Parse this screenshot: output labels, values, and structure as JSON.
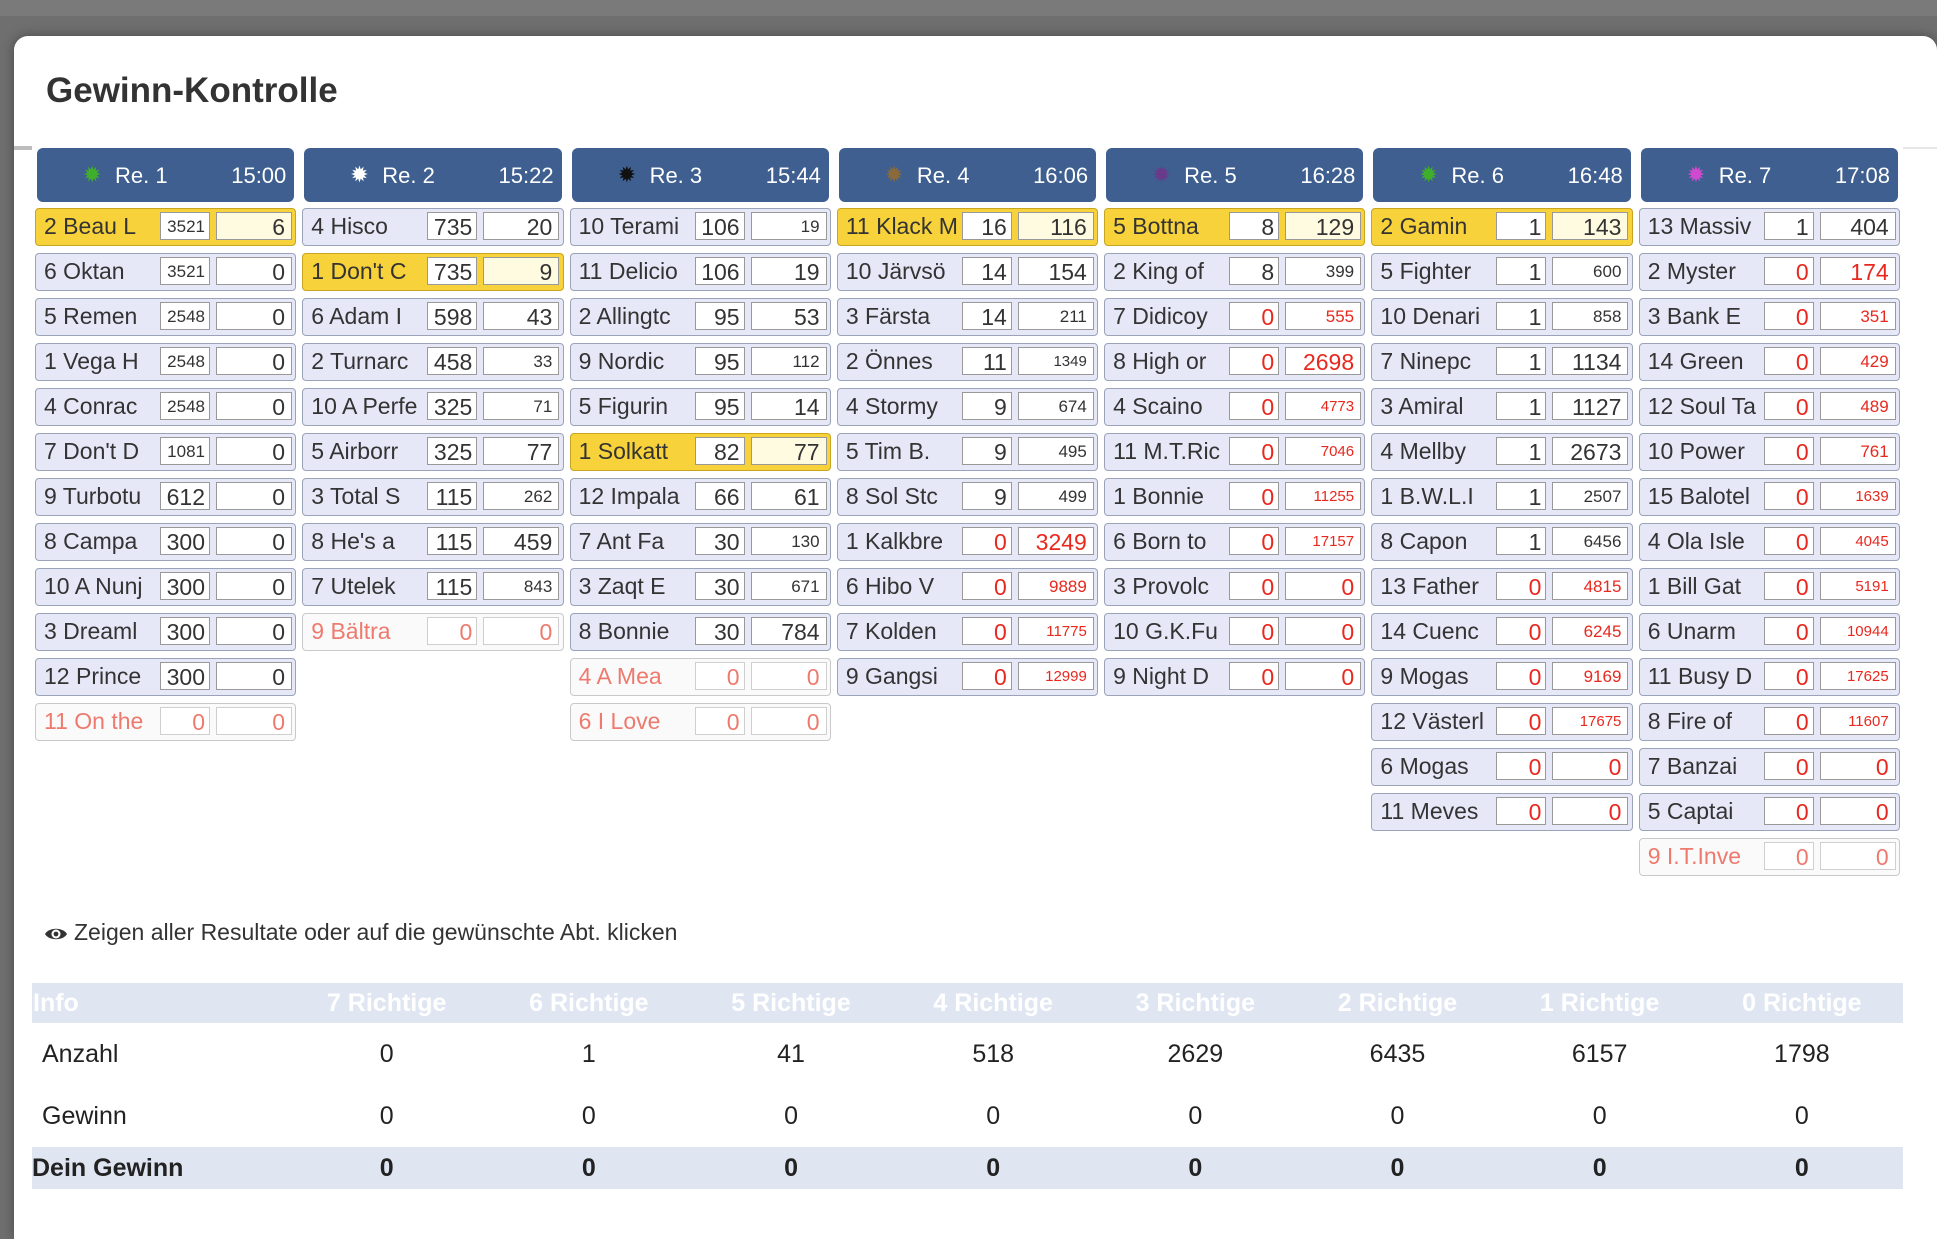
{
  "title": "Gewinn-Kontrolle",
  "hint": "Zeigen aller Resultate oder auf die gewünschte Abt. klicken",
  "races": [
    {
      "name": "Re. 1",
      "time": "15:00",
      "dot": "#3fae2a",
      "entries": [
        {
          "label": "2 Beau L",
          "a": "3521",
          "b": "6",
          "status": "win",
          "asz": "sm"
        },
        {
          "label": "6 Oktan",
          "a": "3521",
          "b": "0",
          "status": "",
          "asz": "sm"
        },
        {
          "label": "5 Remen",
          "a": "2548",
          "b": "0",
          "status": "",
          "asz": "sm"
        },
        {
          "label": "1 Vega H",
          "a": "2548",
          "b": "0",
          "status": "",
          "asz": "sm"
        },
        {
          "label": "4 Conrac",
          "a": "2548",
          "b": "0",
          "status": "",
          "asz": "sm"
        },
        {
          "label": "7 Don't D",
          "a": "1081",
          "b": "0",
          "status": "",
          "asz": "sm"
        },
        {
          "label": "9 Turbotu",
          "a": "612",
          "b": "0",
          "status": ""
        },
        {
          "label": "8 Campa",
          "a": "300",
          "b": "0",
          "status": ""
        },
        {
          "label": "10 A Nunj",
          "a": "300",
          "b": "0",
          "status": ""
        },
        {
          "label": "3 Dreaml",
          "a": "300",
          "b": "0",
          "status": ""
        },
        {
          "label": "12 Prince",
          "a": "300",
          "b": "0",
          "status": ""
        },
        {
          "label": "11 On the",
          "a": "0",
          "b": "0",
          "status": "scratch"
        }
      ]
    },
    {
      "name": "Re. 2",
      "time": "15:22",
      "dot": "#ffffff",
      "entries": [
        {
          "label": "4 Hisco",
          "a": "735",
          "b": "20",
          "status": ""
        },
        {
          "label": "1 Don't C",
          "a": "735",
          "b": "9",
          "status": "win"
        },
        {
          "label": "6 Adam I",
          "a": "598",
          "b": "43",
          "status": ""
        },
        {
          "label": "2 Turnarc",
          "a": "458",
          "b": "33",
          "status": "",
          "bsz": "sm"
        },
        {
          "label": "10 A Perfe",
          "a": "325",
          "b": "71",
          "status": "",
          "bsz": "sm"
        },
        {
          "label": "5 Airborr",
          "a": "325",
          "b": "77",
          "status": ""
        },
        {
          "label": "3 Total S",
          "a": "115",
          "b": "262",
          "status": "",
          "bsz": "sm"
        },
        {
          "label": "8 He's a",
          "a": "115",
          "b": "459",
          "status": ""
        },
        {
          "label": "7 Utelek",
          "a": "115",
          "b": "843",
          "status": "",
          "bsz": "sm"
        },
        {
          "label": "9 Bältra",
          "a": "0",
          "b": "0",
          "status": "scratch"
        }
      ]
    },
    {
      "name": "Re. 3",
      "time": "15:44",
      "dot": "#111111",
      "entries": [
        {
          "label": "10 Terami",
          "a": "106",
          "b": "19",
          "status": "",
          "bsz": "sm"
        },
        {
          "label": "11 Delicio",
          "a": "106",
          "b": "19",
          "status": ""
        },
        {
          "label": "2 Allingtc",
          "a": "95",
          "b": "53",
          "status": ""
        },
        {
          "label": "9 Nordic",
          "a": "95",
          "b": "112",
          "status": "",
          "bsz": "sm"
        },
        {
          "label": "5 Figurin",
          "a": "95",
          "b": "14",
          "status": ""
        },
        {
          "label": "1 Solkatt",
          "a": "82",
          "b": "77",
          "status": "win"
        },
        {
          "label": "12 Impala",
          "a": "66",
          "b": "61",
          "status": ""
        },
        {
          "label": "7 Ant Fa",
          "a": "30",
          "b": "130",
          "status": "",
          "bsz": "sm"
        },
        {
          "label": "3 Zaqt E",
          "a": "30",
          "b": "671",
          "status": "",
          "bsz": "sm"
        },
        {
          "label": "8 Bonnie",
          "a": "30",
          "b": "784",
          "status": ""
        },
        {
          "label": "4 A Mea",
          "a": "0",
          "b": "0",
          "status": "scratch"
        },
        {
          "label": "6 I Love",
          "a": "0",
          "b": "0",
          "status": "scratch"
        }
      ]
    },
    {
      "name": "Re. 4",
      "time": "16:06",
      "dot": "#8a6a3a",
      "entries": [
        {
          "label": "11 Klack M",
          "a": "16",
          "b": "116",
          "status": "win"
        },
        {
          "label": "10 Järvsö",
          "a": "14",
          "b": "154",
          "status": ""
        },
        {
          "label": "3 Färsta",
          "a": "14",
          "b": "211",
          "status": "",
          "bsz": "sm"
        },
        {
          "label": "2 Önnes",
          "a": "11",
          "b": "1349",
          "status": "",
          "bsz": "xs"
        },
        {
          "label": "4 Stormy",
          "a": "9",
          "b": "674",
          "status": "",
          "bsz": "sm"
        },
        {
          "label": "5 Tim B.",
          "a": "9",
          "b": "495",
          "status": "",
          "bsz": "sm"
        },
        {
          "label": "8 Sol Stc",
          "a": "9",
          "b": "499",
          "status": "",
          "bsz": "sm"
        },
        {
          "label": "1 Kalkbre",
          "a": "0",
          "b": "3249",
          "status": "red"
        },
        {
          "label": "6 Hibo V",
          "a": "0",
          "b": "9889",
          "status": "red",
          "bsz": "sm"
        },
        {
          "label": "7 Kolden",
          "a": "0",
          "b": "11775",
          "status": "red",
          "bsz": "xs"
        },
        {
          "label": "9 Gangsi",
          "a": "0",
          "b": "12999",
          "status": "red",
          "bsz": "xs"
        }
      ]
    },
    {
      "name": "Re. 5",
      "time": "16:28",
      "dot": "#6a3a8a",
      "entries": [
        {
          "label": "5 Bottna",
          "a": "8",
          "b": "129",
          "status": "win"
        },
        {
          "label": "2 King of",
          "a": "8",
          "b": "399",
          "status": "",
          "bsz": "sm"
        },
        {
          "label": "7 Didicoy",
          "a": "0",
          "b": "555",
          "status": "red",
          "bsz": "sm"
        },
        {
          "label": "8 High or",
          "a": "0",
          "b": "2698",
          "status": "red"
        },
        {
          "label": "4 Scaino",
          "a": "0",
          "b": "4773",
          "status": "red",
          "bsz": "xs"
        },
        {
          "label": "11 M.T.Ric",
          "a": "0",
          "b": "7046",
          "status": "red",
          "bsz": "xs"
        },
        {
          "label": "1 Bonnie",
          "a": "0",
          "b": "11255",
          "status": "red",
          "bsz": "xs"
        },
        {
          "label": "6 Born to",
          "a": "0",
          "b": "17157",
          "status": "red",
          "bsz": "xs"
        },
        {
          "label": "3 Provolc",
          "a": "0",
          "b": "0",
          "status": "red"
        },
        {
          "label": "10 G.K.Fu",
          "a": "0",
          "b": "0",
          "status": "red"
        },
        {
          "label": "9 Night D",
          "a": "0",
          "b": "0",
          "status": "red"
        }
      ]
    },
    {
      "name": "Re. 6",
      "time": "16:48",
      "dot": "#3fae2a",
      "entries": [
        {
          "label": "2 Gamin",
          "a": "1",
          "b": "143",
          "status": "win"
        },
        {
          "label": "5 Fighter",
          "a": "1",
          "b": "600",
          "status": "",
          "bsz": "sm"
        },
        {
          "label": "10 Denari",
          "a": "1",
          "b": "858",
          "status": "",
          "bsz": "sm"
        },
        {
          "label": "7 Ninepc",
          "a": "1",
          "b": "1134",
          "status": ""
        },
        {
          "label": "3 Amiral",
          "a": "1",
          "b": "1127",
          "status": ""
        },
        {
          "label": "4 Mellby",
          "a": "1",
          "b": "2673",
          "status": ""
        },
        {
          "label": "1 B.W.L.I",
          "a": "1",
          "b": "2507",
          "status": "",
          "bsz": "sm"
        },
        {
          "label": "8 Capon",
          "a": "1",
          "b": "6456",
          "status": "",
          "bsz": "sm"
        },
        {
          "label": "13 Father",
          "a": "0",
          "b": "4815",
          "status": "red",
          "bsz": "sm"
        },
        {
          "label": "14 Cuenc",
          "a": "0",
          "b": "6245",
          "status": "red",
          "bsz": "sm"
        },
        {
          "label": "9 Mogas",
          "a": "0",
          "b": "9169",
          "status": "red",
          "bsz": "sm"
        },
        {
          "label": "12 Västerl",
          "a": "0",
          "b": "17675",
          "status": "red",
          "bsz": "xs"
        },
        {
          "label": "6 Mogas",
          "a": "0",
          "b": "0",
          "status": "red"
        },
        {
          "label": "11 Meves",
          "a": "0",
          "b": "0",
          "status": "red"
        }
      ]
    },
    {
      "name": "Re. 7",
      "time": "17:08",
      "dot": "#d04ad0",
      "entries": [
        {
          "label": "13 Massiv",
          "a": "1",
          "b": "404",
          "status": ""
        },
        {
          "label": "2 Myster",
          "a": "0",
          "b": "174",
          "status": "red"
        },
        {
          "label": "3 Bank E",
          "a": "0",
          "b": "351",
          "status": "red",
          "bsz": "sm"
        },
        {
          "label": "14 Green",
          "a": "0",
          "b": "429",
          "status": "red",
          "bsz": "sm"
        },
        {
          "label": "12 Soul Ta",
          "a": "0",
          "b": "489",
          "status": "red",
          "bsz": "sm"
        },
        {
          "label": "10 Power",
          "a": "0",
          "b": "761",
          "status": "red",
          "bsz": "sm"
        },
        {
          "label": "15 Balotel",
          "a": "0",
          "b": "1639",
          "status": "red",
          "bsz": "xs"
        },
        {
          "label": "4 Ola Isle",
          "a": "0",
          "b": "4045",
          "status": "red",
          "bsz": "xs"
        },
        {
          "label": "1 Bill Gat",
          "a": "0",
          "b": "5191",
          "status": "red",
          "bsz": "xs"
        },
        {
          "label": "6 Unarm",
          "a": "0",
          "b": "10944",
          "status": "red",
          "bsz": "xs"
        },
        {
          "label": "11 Busy D",
          "a": "0",
          "b": "17625",
          "status": "red",
          "bsz": "xs"
        },
        {
          "label": "8 Fire of",
          "a": "0",
          "b": "11607",
          "status": "red",
          "bsz": "xs"
        },
        {
          "label": "7 Banzai",
          "a": "0",
          "b": "0",
          "status": "red"
        },
        {
          "label": "5 Captai",
          "a": "0",
          "b": "0",
          "status": "red"
        },
        {
          "label": "9 I.T.Inve",
          "a": "0",
          "b": "0",
          "status": "scratch"
        }
      ]
    }
  ],
  "summary": {
    "headers": [
      "Info",
      "7 Richtige",
      "6 Richtige",
      "5 Richtige",
      "4 Richtige",
      "3 Richtige",
      "2 Richtige",
      "1 Richtige",
      "0 Richtige"
    ],
    "rows": [
      {
        "label": "Anzahl",
        "values": [
          "0",
          "1",
          "41",
          "518",
          "2629",
          "6435",
          "6157",
          "1798"
        ]
      },
      {
        "label": "Gewinn",
        "values": [
          "0",
          "0",
          "0",
          "0",
          "0",
          "0",
          "0",
          "0"
        ]
      }
    ],
    "total": {
      "label": "Dein Gewinn",
      "values": [
        "0",
        "0",
        "0",
        "0",
        "0",
        "0",
        "0",
        "0"
      ]
    }
  }
}
